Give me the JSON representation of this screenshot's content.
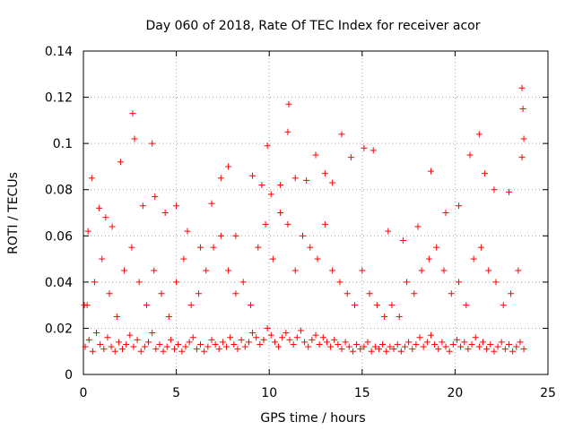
{
  "chart_data": {
    "type": "scatter",
    "title": "Day 060 of 2018, Rate Of TEC Index for receiver acor",
    "xlabel": "GPS time / hours",
    "ylabel": "ROTI / TECUs",
    "xlim": [
      0,
      25
    ],
    "ylim": [
      0,
      0.14
    ],
    "x_ticks": [
      "0",
      "5",
      "10",
      "15",
      "20",
      "25"
    ],
    "y_ticks": [
      "0",
      "0.02",
      "0.04",
      "0.06",
      "0.08",
      "0.1",
      "0.12",
      "0.14"
    ],
    "grid": true,
    "marker": "+",
    "color": "#ff0000",
    "series": [
      {
        "x": [
          0.1,
          0.3,
          0.5,
          0.7,
          0.9,
          1.1,
          1.3,
          1.5,
          1.7,
          1.9,
          2.1,
          2.3,
          2.5,
          2.7,
          2.9,
          3.1,
          3.3,
          3.5,
          3.7,
          3.9,
          4.1,
          4.3,
          4.5,
          4.7,
          4.9,
          5.1,
          5.3,
          5.5,
          5.7,
          5.9,
          6.1,
          6.3,
          6.5,
          6.7,
          6.9,
          7.1,
          7.3,
          7.5,
          7.7,
          7.9,
          8.1,
          8.3,
          8.5,
          8.7,
          8.9,
          9.1,
          9.3,
          9.5,
          9.7,
          9.9,
          10.1,
          10.3,
          10.5,
          10.7,
          10.9,
          11.1,
          11.3,
          11.5,
          11.7,
          11.9,
          12.1,
          12.3,
          12.5,
          12.7,
          12.9,
          13.1,
          13.3,
          13.5,
          13.7,
          13.9,
          14.1,
          14.3,
          14.5,
          14.7,
          14.9,
          15.1,
          15.3,
          15.5,
          15.7,
          15.9,
          16.1,
          16.3,
          16.5,
          16.7,
          16.9,
          17.1,
          17.3,
          17.5,
          17.7,
          17.9,
          18.1,
          18.3,
          18.5,
          18.7,
          18.9,
          19.1,
          19.3,
          19.5,
          19.7,
          19.9,
          20.1,
          20.3,
          20.5,
          20.7,
          20.9,
          21.1,
          21.3,
          21.5,
          21.7,
          21.9,
          22.1,
          22.3,
          22.5,
          22.7,
          22.9,
          23.1,
          23.3,
          23.5,
          23.7,
          0.05,
          0.25,
          0.45,
          0.85,
          1.2,
          1.55,
          2.0,
          2.65,
          2.75,
          3.2,
          3.7,
          3.85,
          4.4,
          5.0,
          5.6,
          6.3,
          6.9,
          7.4,
          7.8,
          8.2,
          9.1,
          9.6,
          9.9,
          10.1,
          10.6,
          11.0,
          11.05,
          11.4,
          12.0,
          12.5,
          13.0,
          13.4,
          13.9,
          14.4,
          15.1,
          15.6,
          16.4,
          17.2,
          18.0,
          18.7,
          19.5,
          20.2,
          20.8,
          21.3,
          21.6,
          22.1,
          22.9,
          23.6,
          23.65,
          23.7,
          23.6,
          0.2,
          0.6,
          1.0,
          1.4,
          1.8,
          2.2,
          2.6,
          3.0,
          3.4,
          3.8,
          4.2,
          4.6,
          5.0,
          5.4,
          5.8,
          6.2,
          6.6,
          7.0,
          7.4,
          7.8,
          8.2,
          8.6,
          9.0,
          9.4,
          9.8,
          10.2,
          10.6,
          11.0,
          11.4,
          11.8,
          12.2,
          12.6,
          13.0,
          13.4,
          13.8,
          14.2,
          14.6,
          15.0,
          15.4,
          15.8,
          16.2,
          16.6,
          17.0,
          17.4,
          17.8,
          18.2,
          18.6,
          19.0,
          19.4,
          19.8,
          20.2,
          20.6,
          21.0,
          21.4,
          21.8,
          22.2,
          22.6,
          23.0,
          23.4
        ],
        "y": [
          0.012,
          0.015,
          0.01,
          0.018,
          0.013,
          0.011,
          0.016,
          0.012,
          0.01,
          0.014,
          0.011,
          0.013,
          0.017,
          0.012,
          0.015,
          0.01,
          0.012,
          0.014,
          0.018,
          0.011,
          0.013,
          0.01,
          0.012,
          0.015,
          0.011,
          0.013,
          0.01,
          0.012,
          0.014,
          0.016,
          0.011,
          0.013,
          0.01,
          0.012,
          0.015,
          0.013,
          0.011,
          0.014,
          0.012,
          0.016,
          0.013,
          0.011,
          0.015,
          0.012,
          0.014,
          0.018,
          0.016,
          0.013,
          0.015,
          0.02,
          0.017,
          0.014,
          0.012,
          0.016,
          0.018,
          0.015,
          0.013,
          0.016,
          0.019,
          0.014,
          0.012,
          0.015,
          0.017,
          0.013,
          0.016,
          0.014,
          0.012,
          0.015,
          0.013,
          0.011,
          0.014,
          0.012,
          0.01,
          0.013,
          0.011,
          0.012,
          0.014,
          0.01,
          0.012,
          0.011,
          0.013,
          0.01,
          0.012,
          0.011,
          0.013,
          0.01,
          0.012,
          0.014,
          0.011,
          0.013,
          0.016,
          0.012,
          0.014,
          0.017,
          0.013,
          0.011,
          0.014,
          0.012,
          0.01,
          0.013,
          0.015,
          0.012,
          0.014,
          0.011,
          0.013,
          0.016,
          0.012,
          0.014,
          0.011,
          0.013,
          0.01,
          0.012,
          0.014,
          0.011,
          0.013,
          0.01,
          0.012,
          0.014,
          0.011,
          0.03,
          0.062,
          0.085,
          0.072,
          0.068,
          0.064,
          0.092,
          0.113,
          0.102,
          0.073,
          0.1,
          0.077,
          0.07,
          0.073,
          0.062,
          0.055,
          0.074,
          0.085,
          0.09,
          0.06,
          0.086,
          0.082,
          0.099,
          0.078,
          0.082,
          0.105,
          0.117,
          0.085,
          0.084,
          0.095,
          0.087,
          0.083,
          0.104,
          0.094,
          0.098,
          0.097,
          0.062,
          0.058,
          0.064,
          0.088,
          0.07,
          0.073,
          0.095,
          0.104,
          0.087,
          0.08,
          0.079,
          0.124,
          0.115,
          0.102,
          0.094,
          0.03,
          0.04,
          0.05,
          0.035,
          0.025,
          0.045,
          0.055,
          0.04,
          0.03,
          0.045,
          0.035,
          0.025,
          0.04,
          0.05,
          0.03,
          0.035,
          0.045,
          0.055,
          0.06,
          0.045,
          0.035,
          0.04,
          0.03,
          0.055,
          0.065,
          0.05,
          0.07,
          0.065,
          0.045,
          0.06,
          0.055,
          0.05,
          0.065,
          0.045,
          0.04,
          0.035,
          0.03,
          0.045,
          0.035,
          0.03,
          0.025,
          0.03,
          0.025,
          0.04,
          0.035,
          0.045,
          0.05,
          0.055,
          0.045,
          0.035,
          0.04,
          0.03,
          0.05,
          0.055,
          0.045,
          0.04,
          0.03,
          0.035,
          0.045
        ]
      }
    ]
  }
}
